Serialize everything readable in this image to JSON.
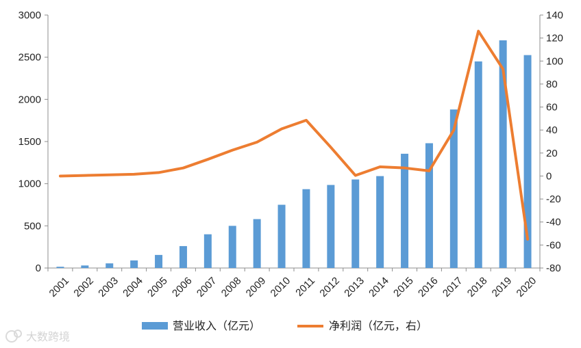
{
  "chart_data": {
    "type": "bar+line",
    "categories": [
      "2001",
      "2002",
      "2003",
      "2004",
      "2005",
      "2006",
      "2007",
      "2008",
      "2009",
      "2010",
      "2011",
      "2012",
      "2013",
      "2014",
      "2015",
      "2016",
      "2017",
      "2018",
      "2019",
      "2020"
    ],
    "series": [
      {
        "name": "营业收入（亿元）",
        "type": "bar",
        "axis": "left",
        "color": "#5b9bd5",
        "values": [
          15,
          30,
          55,
          90,
          155,
          260,
          400,
          500,
          580,
          750,
          935,
          985,
          1050,
          1090,
          1355,
          1480,
          1880,
          2450,
          2700,
          2525
        ]
      },
      {
        "name": "净利润（亿元，右）",
        "type": "line",
        "axis": "right",
        "color": "#ed7d31",
        "values": [
          0,
          0.5,
          1,
          1.5,
          3,
          7,
          14.5,
          22.5,
          29.5,
          41,
          48.5,
          25,
          0.5,
          8,
          7,
          4.5,
          40,
          126,
          93,
          -55
        ]
      }
    ],
    "y_left": {
      "min": 0,
      "max": 3000,
      "ticks": [
        0,
        500,
        1000,
        1500,
        2000,
        2500,
        3000
      ]
    },
    "y_right": {
      "min": -80,
      "max": 140,
      "ticks": [
        -80,
        -60,
        -40,
        -20,
        0,
        20,
        40,
        60,
        80,
        100,
        120,
        140
      ]
    },
    "legend_position": "bottom",
    "grid": false
  },
  "watermark": {
    "text": "大数跨境",
    "icon": "logo-swirl-icon"
  }
}
